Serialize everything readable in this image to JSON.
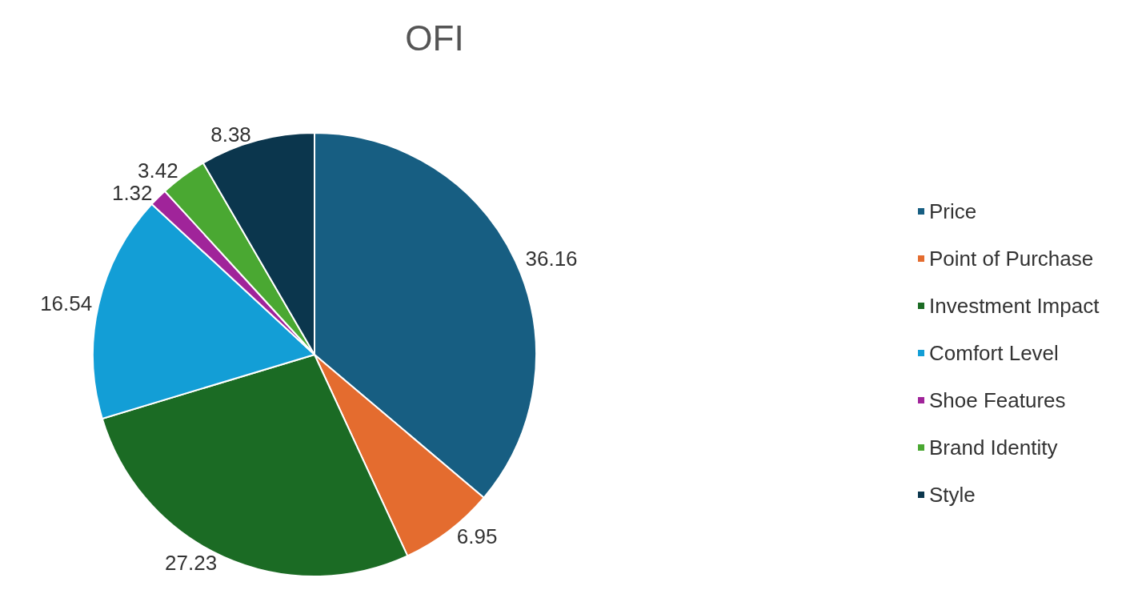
{
  "chart_data": {
    "type": "pie",
    "title": "OFI",
    "categories": [
      "Price",
      "Point of Purchase",
      "Investment Impact",
      "Comfort Level",
      "Shoe Features",
      "Brand Identity",
      "Style"
    ],
    "values": [
      36.16,
      6.95,
      27.23,
      16.54,
      1.32,
      3.42,
      8.38
    ],
    "colors": [
      "#175e82",
      "#e46c2f",
      "#1b6b24",
      "#139ed6",
      "#a0249a",
      "#4aa832",
      "#0b364d"
    ],
    "data_labels": true,
    "legend": "right"
  }
}
